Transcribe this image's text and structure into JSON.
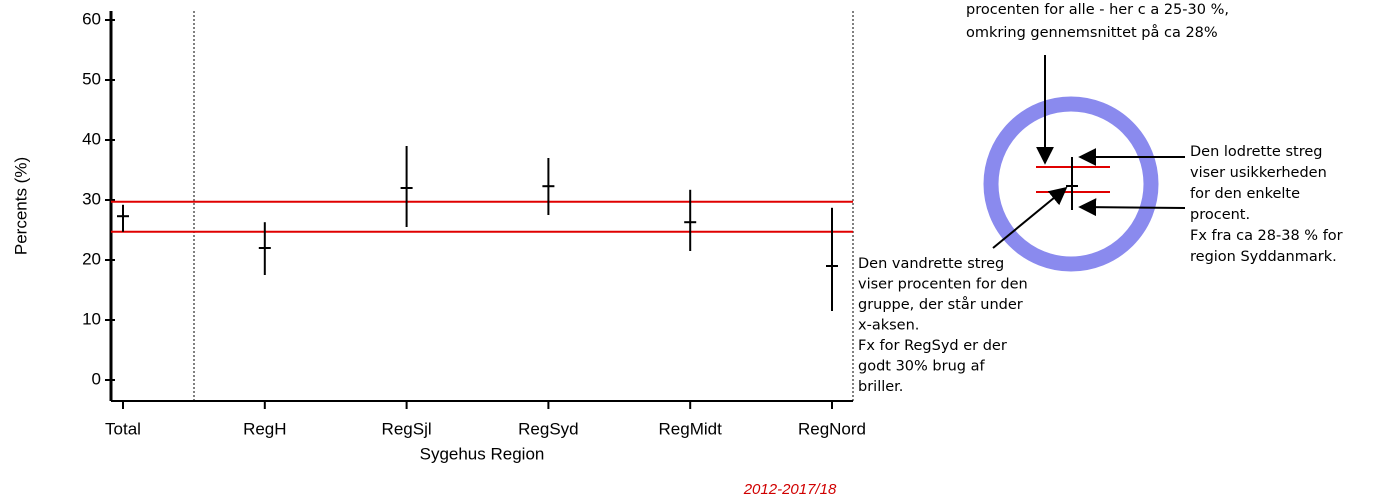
{
  "chart_data": {
    "type": "errorbar",
    "categories": [
      "Total",
      "RegH",
      "RegSjl",
      "RegSyd",
      "RegMidt",
      "RegNord"
    ],
    "values": [
      27.3,
      22,
      32,
      32.3,
      26.3,
      19
    ],
    "low": [
      24.7,
      17.5,
      25.5,
      27.5,
      21.5,
      11.5
    ],
    "high": [
      29.2,
      26.3,
      39,
      37,
      31.7,
      28.7
    ],
    "color": "#000000",
    "reference_lines": [
      29.7,
      24.7
    ],
    "reference_color": "#e00000",
    "ylim": [
      -3.5,
      61.5
    ],
    "yticks": [
      0,
      10,
      20,
      30,
      40,
      50,
      60
    ],
    "y_label": "Percents (%)",
    "x_label": "Sygehus Region",
    "footer": "2012-2017/18"
  },
  "annotations": {
    "top": [
      "procenten for alle - her c a 25-30 %,",
      "omkring gennemsnittet på ca 28%"
    ],
    "right": [
      "Den lodrette streg",
      "viser usikkerheden",
      "for den enkelte",
      "procent.",
      "Fx fra ca 28-38 % for",
      "region Syddanmark."
    ],
    "bottom": [
      "Den vandrette streg",
      "viser procenten for den",
      "gruppe, der står under",
      "x-aksen.",
      "Fx for RegSyd er der",
      "godt 30% brug af",
      "briller."
    ]
  }
}
